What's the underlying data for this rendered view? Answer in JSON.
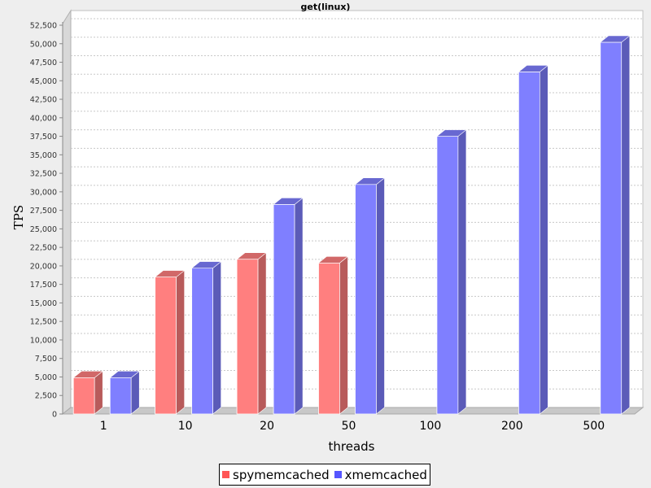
{
  "chart_data": {
    "type": "bar",
    "title": "get(linux)",
    "xlabel": "threads",
    "ylabel": "TPS",
    "categories": [
      "1",
      "10",
      "20",
      "50",
      "100",
      "200",
      "500"
    ],
    "series": [
      {
        "name": "spymemcached",
        "color": "#ff7f7f",
        "values": [
          4900,
          18500,
          20900,
          20400,
          null,
          null,
          null
        ]
      },
      {
        "name": "xmemcached",
        "color": "#7f7fff",
        "values": [
          4900,
          19700,
          28300,
          31000,
          37500,
          46200,
          50200
        ]
      }
    ],
    "ylim": [
      0,
      52500
    ],
    "yticks": [
      "0",
      "2,500",
      "5,000",
      "7,500",
      "10,000",
      "12,500",
      "15,000",
      "17,500",
      "20,000",
      "22,500",
      "25,000",
      "27,500",
      "30,000",
      "32,500",
      "35,000",
      "37,500",
      "40,000",
      "42,500",
      "45,000",
      "47,500",
      "50,000",
      "52,500"
    ],
    "grid": true,
    "legend_position": "bottom"
  }
}
